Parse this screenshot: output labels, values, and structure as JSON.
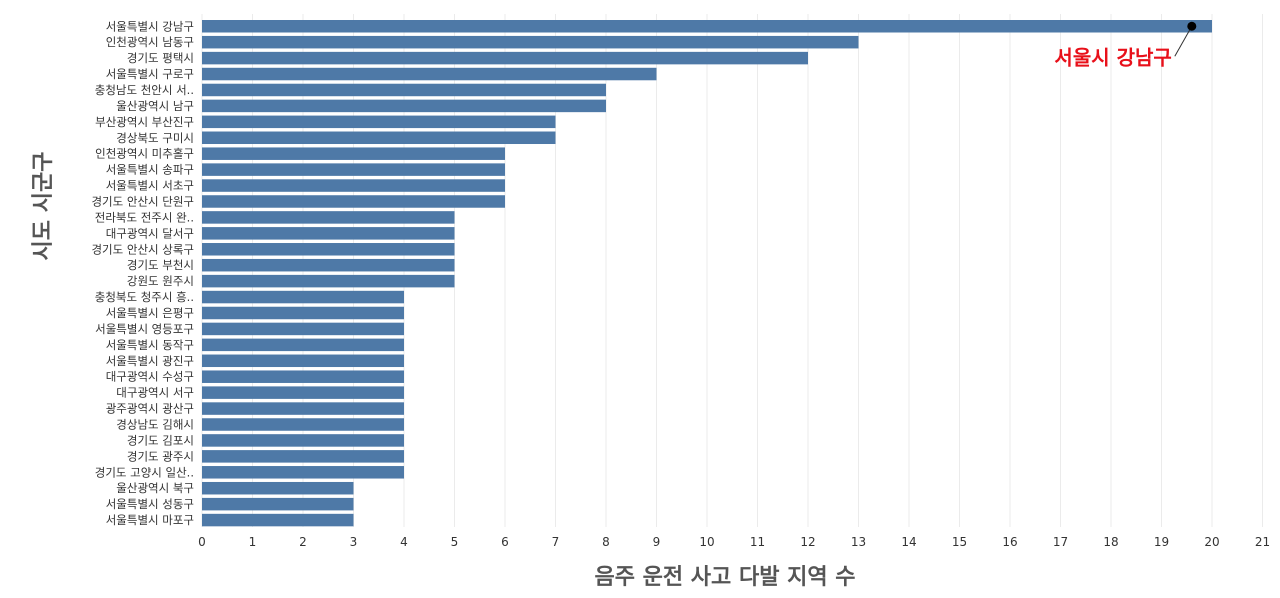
{
  "chart_data": {
    "type": "bar",
    "orientation": "horizontal",
    "categories": [
      "서울특별시 강남구",
      "인천광역시 남동구",
      "경기도 평택시",
      "서울특별시 구로구",
      "충청남도 천안시 서..",
      "울산광역시 남구",
      "부산광역시 부산진구",
      "경상북도 구미시",
      "인천광역시 미추홀구",
      "서울특별시 송파구",
      "서울특별시 서초구",
      "경기도 안산시 단원구",
      "전라북도 전주시 완..",
      "대구광역시 달서구",
      "경기도 안산시 상록구",
      "경기도 부천시",
      "강원도 원주시",
      "충청북도 청주시 흥..",
      "서울특별시 은평구",
      "서울특별시 영등포구",
      "서울특별시 동작구",
      "서울특별시 광진구",
      "대구광역시 수성구",
      "대구광역시 서구",
      "광주광역시 광산구",
      "경상남도 김해시",
      "경기도 김포시",
      "경기도 광주시",
      "경기도 고양시 일산..",
      "울산광역시 북구",
      "서울특별시 성동구",
      "서울특별시 마포구"
    ],
    "values": [
      20,
      13,
      12,
      9,
      8,
      8,
      7,
      7,
      6,
      6,
      6,
      6,
      5,
      5,
      5,
      5,
      5,
      4,
      4,
      4,
      4,
      4,
      4,
      4,
      4,
      4,
      4,
      4,
      4,
      3,
      3,
      3
    ],
    "xlim": [
      0,
      21
    ],
    "xticks": [
      "0",
      "1",
      "2",
      "3",
      "4",
      "5",
      "6",
      "7",
      "8",
      "9",
      "10",
      "11",
      "12",
      "13",
      "14",
      "15",
      "16",
      "17",
      "18",
      "19",
      "20",
      "21"
    ],
    "xlabel": "음주 운전 사고 다발 지역 수",
    "ylabel": "시도 시군구",
    "grid": true,
    "bar_color": "#4e79a7",
    "annotation": {
      "text": "서울시 강남구",
      "color": "#e8101a",
      "target_category": "서울특별시 강남구",
      "target_value": 19.6
    }
  }
}
